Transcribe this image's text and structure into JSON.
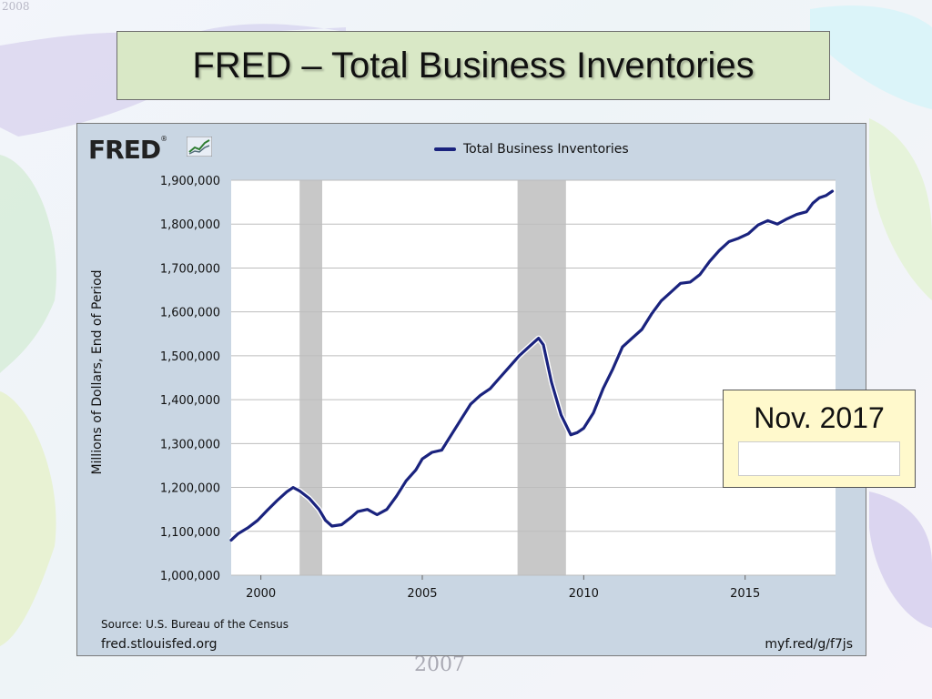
{
  "slide": {
    "title": "FRED – Total Business Inventories",
    "corner_year": "2008",
    "bottom_year": "2007"
  },
  "callout": {
    "date": "Nov. 2017"
  },
  "chart_data": {
    "type": "line",
    "logo": "FRED",
    "legend": [
      "Total Business Inventories"
    ],
    "ylabel": "Millions of Dollars, End of Period",
    "source": "Source: U.S. Bureau of the Census",
    "site": "fred.stlouisfed.org",
    "short_url": "myf.red/g/f7js",
    "xlim": [
      1999.08,
      2017.8
    ],
    "ylim": [
      1000000,
      1900000
    ],
    "x_ticks": [
      2000,
      2005,
      2010,
      2015
    ],
    "x_tick_labels": [
      "2000",
      "2005",
      "2010",
      "2015"
    ],
    "y_ticks": [
      1000000,
      1100000,
      1200000,
      1300000,
      1400000,
      1500000,
      1600000,
      1700000,
      1800000,
      1900000
    ],
    "y_tick_labels": [
      "1,000,000",
      "1,100,000",
      "1,200,000",
      "1,300,000",
      "1,400,000",
      "1,500,000",
      "1,600,000",
      "1,700,000",
      "1,800,000",
      "1,900,000"
    ],
    "recessions": [
      [
        2001.2,
        2001.9
      ],
      [
        2007.95,
        2009.45
      ]
    ],
    "series": [
      {
        "name": "Total Business Inventories",
        "color": "#1a237e",
        "x": [
          1999.08,
          1999.3,
          1999.6,
          1999.9,
          2000.2,
          2000.5,
          2000.8,
          2001.0,
          2001.2,
          2001.5,
          2001.8,
          2002.0,
          2002.2,
          2002.5,
          2002.8,
          2003.0,
          2003.3,
          2003.6,
          2003.9,
          2004.2,
          2004.5,
          2004.8,
          2005.0,
          2005.3,
          2005.6,
          2005.9,
          2006.2,
          2006.5,
          2006.8,
          2007.1,
          2007.4,
          2007.7,
          2008.0,
          2008.3,
          2008.6,
          2008.75,
          2009.0,
          2009.3,
          2009.6,
          2009.8,
          2010.0,
          2010.3,
          2010.6,
          2010.9,
          2011.2,
          2011.5,
          2011.8,
          2012.1,
          2012.4,
          2012.7,
          2013.0,
          2013.3,
          2013.6,
          2013.9,
          2014.2,
          2014.5,
          2014.8,
          2015.1,
          2015.4,
          2015.7,
          2016.0,
          2016.3,
          2016.6,
          2016.9,
          2017.1,
          2017.3,
          2017.5,
          2017.7
        ],
        "values": [
          1080000,
          1095000,
          1108000,
          1125000,
          1148000,
          1170000,
          1190000,
          1200000,
          1192000,
          1175000,
          1150000,
          1125000,
          1112000,
          1115000,
          1132000,
          1145000,
          1150000,
          1138000,
          1150000,
          1180000,
          1215000,
          1240000,
          1265000,
          1280000,
          1285000,
          1320000,
          1355000,
          1390000,
          1410000,
          1425000,
          1450000,
          1475000,
          1500000,
          1520000,
          1540000,
          1525000,
          1440000,
          1365000,
          1320000,
          1325000,
          1335000,
          1370000,
          1425000,
          1470000,
          1520000,
          1540000,
          1560000,
          1595000,
          1625000,
          1645000,
          1665000,
          1668000,
          1685000,
          1715000,
          1740000,
          1760000,
          1768000,
          1778000,
          1798000,
          1808000,
          1800000,
          1812000,
          1822000,
          1828000,
          1848000,
          1860000,
          1865000,
          1875000
        ]
      }
    ]
  }
}
